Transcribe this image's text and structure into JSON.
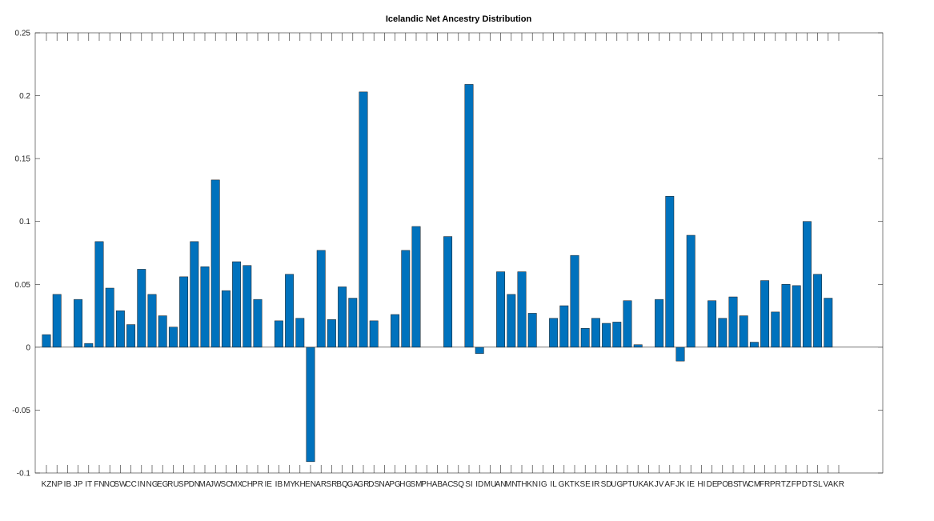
{
  "chart_data": {
    "type": "bar",
    "title": "Icelandic Net Ancestry Distribution",
    "xlabel": "",
    "ylabel": "",
    "ylim": [
      -0.1,
      0.25
    ],
    "yticks": [
      "-0.1",
      "-0.05",
      "0",
      "0.05",
      "0.1",
      "0.15",
      "0.2",
      "0.25"
    ],
    "grid": false,
    "bar_color": "#0072BD",
    "categories": [
      "KZ",
      "NP",
      "IB",
      "JP",
      "IT",
      "FN",
      "NO",
      "SW",
      "CC",
      "IN",
      "NG",
      "EG",
      "RU",
      "SP",
      "DN",
      "MA",
      "JW",
      "SC",
      "MX",
      "CH",
      "PR",
      "IE",
      "IB",
      "MY",
      "KH",
      "EN",
      "AR",
      "SR",
      "BQ",
      "GA",
      "GR",
      "DS",
      "NA",
      "PG",
      "HG",
      "SM",
      "PH",
      "AB",
      "AC",
      "SQ",
      "SI",
      "ID",
      "MU",
      "AN",
      "MN",
      "TH",
      "KN",
      "IG",
      "IL",
      "GK",
      "TK",
      "SE",
      "IR",
      "SD",
      "UG",
      "PT",
      "UK",
      "AK",
      "JV",
      "AF",
      "JK",
      "IE",
      "HI",
      "DE",
      "PO",
      "BS",
      "TW",
      "CM",
      "FR",
      "PR",
      "TZ",
      "FP",
      "DT",
      "SL",
      "VA",
      "KR"
    ],
    "values": [
      0.01,
      0.042,
      0,
      0.038,
      0.003,
      0.084,
      0.047,
      0.029,
      0.018,
      0.062,
      0.042,
      0.025,
      0.016,
      0.056,
      0.084,
      0.064,
      0.133,
      0.045,
      0.068,
      0.065,
      0.038,
      0,
      0.021,
      0.058,
      0.023,
      -0.091,
      0.077,
      0.022,
      0.048,
      0.039,
      0.203,
      0.021,
      0,
      0.026,
      0.077,
      0.096,
      0,
      0,
      0.088,
      0,
      0.209,
      -0.005,
      0,
      0.06,
      0.042,
      0.06,
      0.027,
      0,
      0.023,
      0.033,
      0.073,
      0.015,
      0.023,
      0.019,
      0.02,
      0.037,
      0.002,
      0,
      0.038,
      0.12,
      -0.011,
      0.089,
      0,
      0.037,
      0.023,
      0.04,
      0.025,
      0.004,
      0.053,
      0.028,
      0.05,
      0.049,
      0.1,
      0.058,
      0.039,
      0
    ]
  }
}
